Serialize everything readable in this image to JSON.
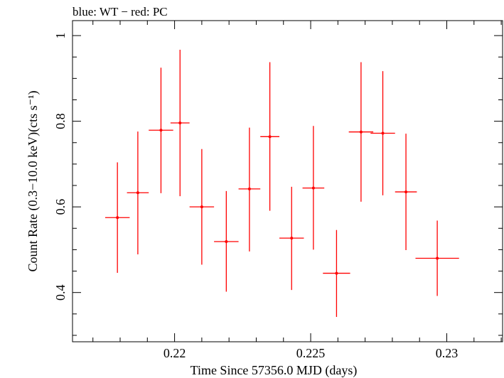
{
  "chart_data": {
    "type": "scatter",
    "title": "blue: WT − red: PC",
    "xlabel": "Time Since 57356.0 MJD (days)",
    "ylabel": "Count Rate (0.3−10.0 keV)(cts s⁻¹)",
    "xlim": [
      0.21625,
      0.23205
    ],
    "ylim": [
      0.285,
      1.035
    ],
    "x_ticks": [
      {
        "value": 0.22,
        "label": "0.22"
      },
      {
        "value": 0.225,
        "label": "0.225"
      },
      {
        "value": 0.23,
        "label": "0.23"
      }
    ],
    "y_ticks": [
      {
        "value": 0.4,
        "label": "0.4"
      },
      {
        "value": 0.6,
        "label": "0.6"
      },
      {
        "value": 0.8,
        "label": "0.8"
      },
      {
        "value": 1.0,
        "label": "1"
      }
    ],
    "x_minor_step": 0.001,
    "y_minor_step": 0.05,
    "series": [
      {
        "color": "#ff0000",
        "points": [
          {
            "x": 0.2179,
            "xerr": 0.00045,
            "y": 0.575,
            "y_low": 0.446,
            "y_high": 0.704
          },
          {
            "x": 0.21865,
            "xerr": 0.0004,
            "y": 0.633,
            "y_low": 0.489,
            "y_high": 0.776
          },
          {
            "x": 0.2195,
            "xerr": 0.00045,
            "y": 0.779,
            "y_low": 0.632,
            "y_high": 0.925
          },
          {
            "x": 0.2202,
            "xerr": 0.00035,
            "y": 0.796,
            "y_low": 0.625,
            "y_high": 0.967
          },
          {
            "x": 0.221,
            "xerr": 0.00045,
            "y": 0.6,
            "y_low": 0.465,
            "y_high": 0.735
          },
          {
            "x": 0.2219,
            "xerr": 0.00045,
            "y": 0.519,
            "y_low": 0.402,
            "y_high": 0.637
          },
          {
            "x": 0.22275,
            "xerr": 0.0004,
            "y": 0.642,
            "y_low": 0.496,
            "y_high": 0.785
          },
          {
            "x": 0.2235,
            "xerr": 0.00035,
            "y": 0.764,
            "y_low": 0.591,
            "y_high": 0.938
          },
          {
            "x": 0.2243,
            "xerr": 0.00045,
            "y": 0.527,
            "y_low": 0.406,
            "y_high": 0.647
          },
          {
            "x": 0.2251,
            "xerr": 0.0004,
            "y": 0.644,
            "y_low": 0.5,
            "y_high": 0.789
          },
          {
            "x": 0.22595,
            "xerr": 0.0005,
            "y": 0.445,
            "y_low": 0.343,
            "y_high": 0.546
          },
          {
            "x": 0.22685,
            "xerr": 0.00045,
            "y": 0.775,
            "y_low": 0.612,
            "y_high": 0.938
          },
          {
            "x": 0.22765,
            "xerr": 0.00045,
            "y": 0.772,
            "y_low": 0.627,
            "y_high": 0.917
          },
          {
            "x": 0.2285,
            "xerr": 0.0004,
            "y": 0.635,
            "y_low": 0.499,
            "y_high": 0.771
          },
          {
            "x": 0.22965,
            "xerr": 0.0008,
            "y": 0.48,
            "y_low": 0.392,
            "y_high": 0.568
          }
        ]
      }
    ]
  }
}
